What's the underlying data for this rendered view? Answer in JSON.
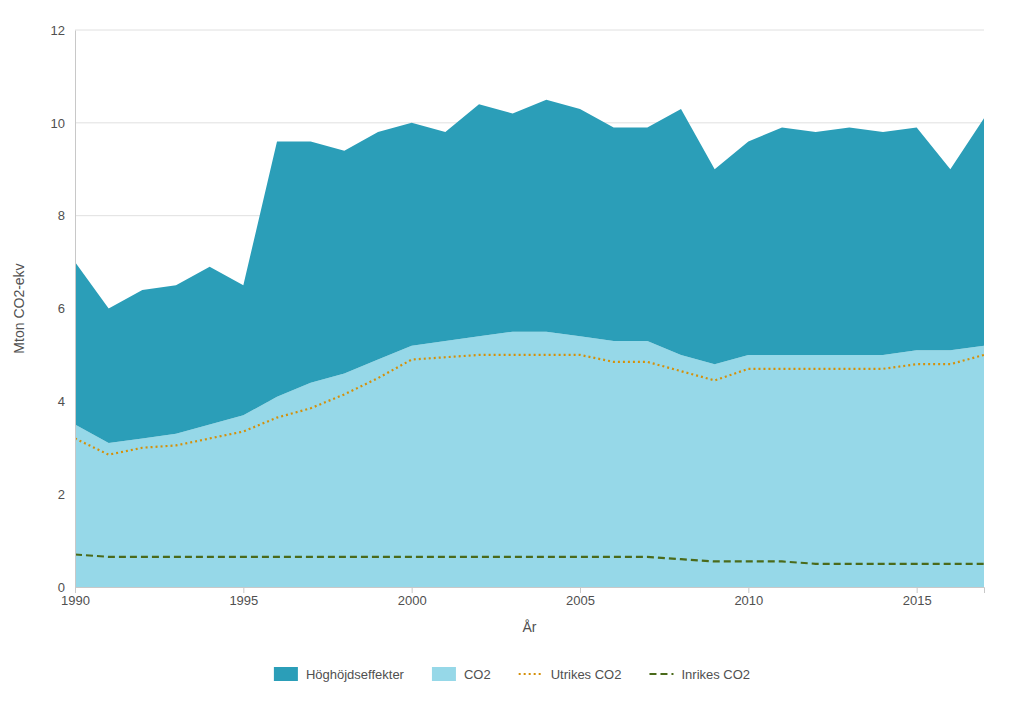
{
  "chart_data": {
    "type": "area",
    "xlabel": "År",
    "ylabel": "Mton CO2-ekv",
    "x": [
      1990,
      1991,
      1992,
      1993,
      1994,
      1995,
      1996,
      1997,
      1998,
      1999,
      2000,
      2001,
      2002,
      2003,
      2004,
      2005,
      2006,
      2007,
      2008,
      2009,
      2010,
      2011,
      2012,
      2013,
      2014,
      2015,
      2016,
      2017
    ],
    "series": [
      {
        "name": "CO2",
        "type": "area",
        "color": "#96d8e8",
        "values": [
          3.5,
          3.1,
          3.2,
          3.3,
          3.5,
          3.7,
          4.1,
          4.4,
          4.6,
          4.9,
          5.2,
          5.3,
          5.4,
          5.5,
          5.5,
          5.4,
          5.3,
          5.3,
          5.0,
          4.8,
          5.0,
          5.0,
          5.0,
          5.0,
          5.0,
          5.1,
          5.1,
          5.2
        ]
      },
      {
        "name": "Höghöjdseffekter",
        "type": "area",
        "color": "#2b9eb8",
        "values": [
          3.5,
          2.9,
          3.2,
          3.2,
          3.4,
          2.8,
          5.5,
          5.2,
          4.8,
          4.9,
          4.8,
          4.5,
          5.0,
          4.7,
          5.0,
          4.9,
          4.6,
          4.6,
          5.3,
          4.2,
          4.6,
          4.9,
          4.8,
          4.9,
          4.8,
          4.8,
          3.9,
          4.9
        ]
      },
      {
        "name": "Utrikes CO2",
        "type": "line",
        "color": "#d4900a",
        "line_style": "dotted",
        "values": [
          3.2,
          2.85,
          3.0,
          3.05,
          3.2,
          3.35,
          3.65,
          3.85,
          4.15,
          4.5,
          4.9,
          4.95,
          5.0,
          5.0,
          5.0,
          5.0,
          4.85,
          4.85,
          4.65,
          4.45,
          4.7,
          4.7,
          4.7,
          4.7,
          4.7,
          4.8,
          4.8,
          5.0
        ]
      },
      {
        "name": "Inrikes CO2",
        "type": "line",
        "color": "#4a6a1a",
        "line_style": "dashed",
        "values": [
          0.7,
          0.65,
          0.65,
          0.65,
          0.65,
          0.65,
          0.65,
          0.65,
          0.65,
          0.65,
          0.65,
          0.65,
          0.65,
          0.65,
          0.65,
          0.65,
          0.65,
          0.65,
          0.6,
          0.55,
          0.55,
          0.55,
          0.5,
          0.5,
          0.5,
          0.5,
          0.5,
          0.5
        ]
      }
    ],
    "stacked": true,
    "xlim": [
      1990,
      2017
    ],
    "xticks": [
      1990,
      1995,
      2000,
      2005,
      2010,
      2015
    ],
    "ylim": [
      0,
      12
    ],
    "yticks": [
      0,
      2,
      4,
      6,
      8,
      10,
      12
    ],
    "grid": true,
    "legend": "bottom"
  }
}
